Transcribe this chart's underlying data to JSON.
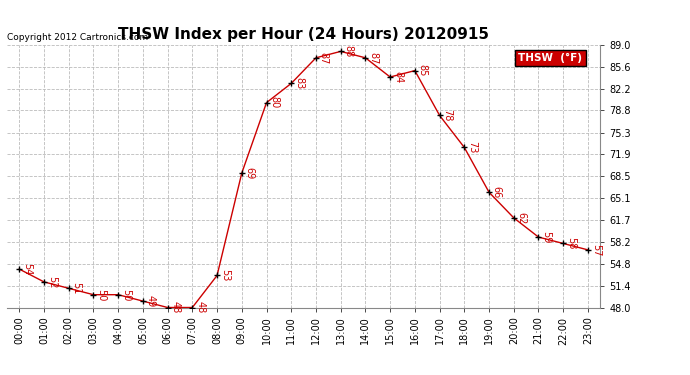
{
  "title": "THSW Index per Hour (24 Hours) 20120915",
  "copyright": "Copyright 2012 Cartronics.com",
  "legend_label": "THSW  (°F)",
  "hours": [
    "00:00",
    "01:00",
    "02:00",
    "03:00",
    "04:00",
    "05:00",
    "06:00",
    "07:00",
    "08:00",
    "09:00",
    "10:00",
    "11:00",
    "12:00",
    "13:00",
    "14:00",
    "15:00",
    "16:00",
    "17:00",
    "18:00",
    "19:00",
    "20:00",
    "21:00",
    "22:00",
    "23:00"
  ],
  "values": [
    54,
    52,
    51,
    50,
    50,
    49,
    48,
    48,
    53,
    69,
    80,
    83,
    87,
    88,
    87,
    84,
    85,
    78,
    73,
    66,
    62,
    59,
    58,
    57
  ],
  "ylim": [
    48.0,
    89.0
  ],
  "yticks": [
    48.0,
    51.4,
    54.8,
    58.2,
    61.7,
    65.1,
    68.5,
    71.9,
    75.3,
    78.8,
    82.2,
    85.6,
    89.0
  ],
  "line_color": "#cc0000",
  "marker_color": "#000000",
  "label_color": "#cc0000",
  "grid_color": "#bbbbbb",
  "background_color": "#ffffff",
  "title_fontsize": 11,
  "label_fontsize": 7,
  "tick_fontsize": 7,
  "legend_bg": "#cc0000",
  "legend_text_color": "#ffffff"
}
